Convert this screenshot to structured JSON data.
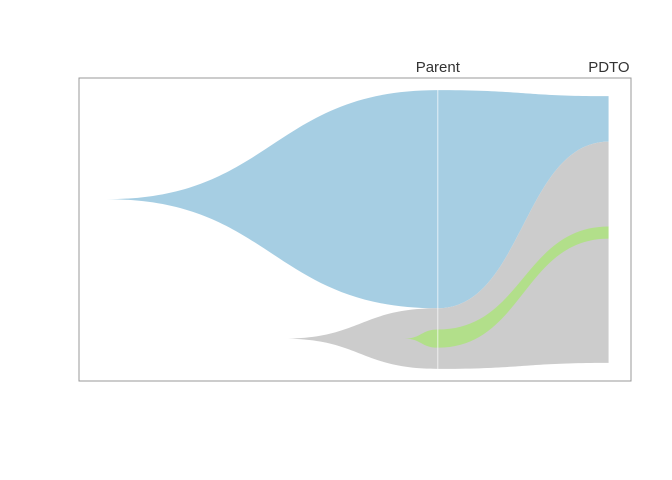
{
  "chart_data": {
    "type": "area",
    "subtype": "fish-plot",
    "timepoints": [
      {
        "label": "Parent",
        "x": 0.65
      },
      {
        "label": "PDTO",
        "x": 0.96
      }
    ],
    "xlim": [
      0,
      1
    ],
    "ylim": [
      0,
      1
    ],
    "grid": false,
    "legend": "none",
    "clones": [
      {
        "id": "clone-blue",
        "color": "#a6cee3",
        "start_x": 0.05,
        "center_y": 0.6,
        "points": [
          {
            "x": 0.65,
            "top": 0.96,
            "bottom": 0.24
          },
          {
            "x": 0.96,
            "top": 0.94,
            "bottom": 0.79
          }
        ]
      },
      {
        "id": "clone-gray",
        "color": "#cccccc",
        "start_x": 0.37,
        "center_y": 0.14,
        "points": [
          {
            "x": 0.65,
            "top": 0.24,
            "bottom": 0.04
          },
          {
            "x": 0.96,
            "top": 0.79,
            "bottom": 0.06
          }
        ]
      },
      {
        "id": "clone-green",
        "color": "#b2df8a",
        "start_x": 0.59,
        "center_y": 0.14,
        "points": [
          {
            "x": 0.65,
            "top": 0.17,
            "bottom": 0.11
          },
          {
            "x": 0.96,
            "top": 0.51,
            "bottom": 0.47
          }
        ]
      }
    ]
  }
}
